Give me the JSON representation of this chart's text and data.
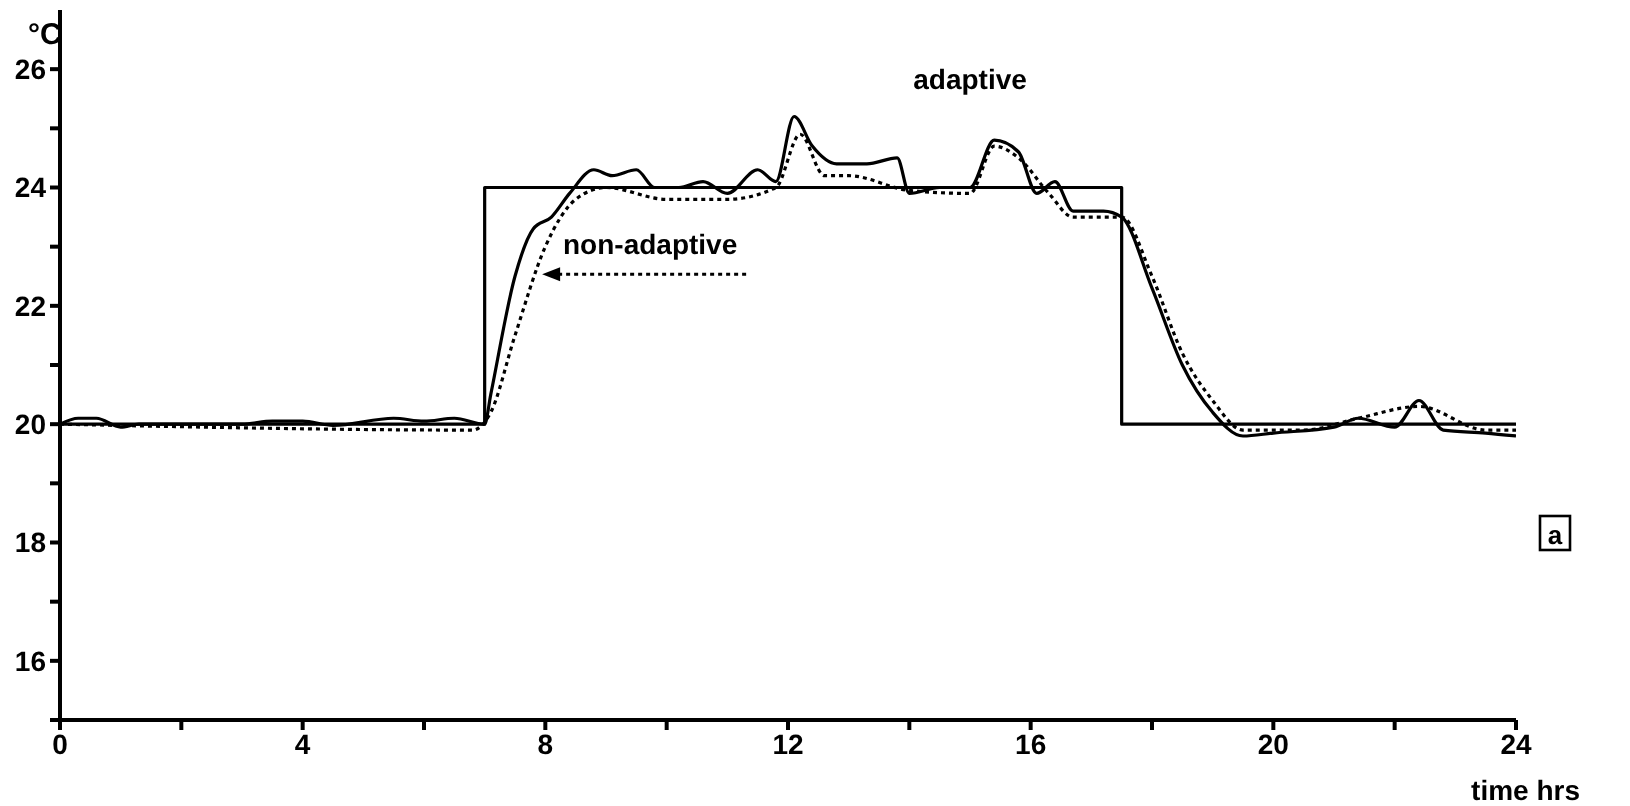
{
  "chart_data": {
    "type": "line",
    "ylabel": "°C",
    "xlabel": "time hrs",
    "xlim": [
      0,
      24
    ],
    "ylim": [
      15,
      27
    ],
    "marker": "none",
    "xticks": [
      0,
      {
        "value": 2,
        "label": null
      },
      4,
      {
        "value": 6,
        "label": null
      },
      8,
      {
        "value": 10,
        "label": null
      },
      12,
      {
        "value": 14,
        "label": null
      },
      16,
      {
        "value": 18,
        "label": null
      },
      20,
      {
        "value": 22,
        "label": null
      },
      24
    ],
    "yticks": [
      {
        "value": 15,
        "label": null
      },
      16,
      {
        "value": 17,
        "label": null
      },
      18,
      {
        "value": 19,
        "label": null
      },
      20,
      {
        "value": 21,
        "label": null
      },
      22,
      {
        "value": 23,
        "label": null
      },
      24,
      {
        "value": 25,
        "label": null
      },
      26
    ],
    "series": [
      {
        "color": "#000000",
        "line_style": "solid",
        "x": [
          0,
          7,
          7,
          17.5,
          17.5,
          24
        ],
        "values": [
          20,
          20,
          24,
          24,
          20,
          20
        ]
      },
      {
        "name": "adaptive",
        "color": "#000000",
        "line_style": "solid",
        "x": [
          0,
          0.3,
          0.6,
          1,
          1.3,
          3,
          3.5,
          4,
          4.5,
          5.5,
          6,
          6.5,
          7,
          7.1,
          7.5,
          7.8,
          8.1,
          8.4,
          8.8,
          9.1,
          9.5,
          9.8,
          10.2,
          10.6,
          11,
          11.5,
          11.8,
          12.1,
          12.4,
          12.8,
          13.3,
          13.8,
          14,
          14.5,
          15,
          15.4,
          15.8,
          16.1,
          16.4,
          16.7,
          17.2,
          17.5,
          18,
          18.5,
          19,
          19.5,
          20,
          21,
          21.4,
          22,
          22.4,
          22.8,
          23.5,
          24
        ],
        "values": [
          20,
          20.1,
          20.1,
          19.95,
          20,
          20,
          20.05,
          20.05,
          19.98,
          20.1,
          20.05,
          20.1,
          20,
          20.5,
          22.5,
          23.3,
          23.5,
          23.9,
          24.3,
          24.2,
          24.3,
          24,
          24,
          24.1,
          23.9,
          24.3,
          24.1,
          25.2,
          24.7,
          24.4,
          24.4,
          24.5,
          23.9,
          24,
          24,
          24.8,
          24.6,
          23.9,
          24.1,
          23.6,
          23.6,
          23.5,
          22.3,
          21,
          20.2,
          19.8,
          19.85,
          19.95,
          20.1,
          19.95,
          20.4,
          19.9,
          19.85,
          19.8
        ]
      },
      {
        "name": "non-adaptive",
        "color": "#000000",
        "line_style": "dotted",
        "x": [
          0,
          6.8,
          7.1,
          7.5,
          8,
          8.5,
          9,
          10,
          10.6,
          11,
          11.8,
          12.2,
          12.6,
          13,
          14,
          15,
          15.4,
          15.8,
          16.3,
          16.7,
          17.2,
          17.5,
          18,
          18.5,
          19,
          19.5,
          20.5,
          21.4,
          22.4,
          23.5,
          24
        ],
        "values": [
          20,
          19.9,
          20.2,
          21.5,
          23,
          23.8,
          24,
          23.8,
          23.8,
          23.8,
          24,
          24.9,
          24.2,
          24.2,
          23.95,
          23.9,
          24.7,
          24.5,
          23.9,
          23.5,
          23.5,
          23.5,
          22.5,
          21.2,
          20.4,
          19.9,
          19.9,
          20.1,
          20.3,
          19.9,
          19.9
        ]
      }
    ],
    "annotations": [
      "a"
    ]
  }
}
